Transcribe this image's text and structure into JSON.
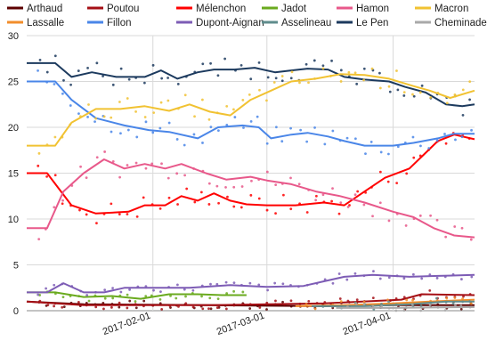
{
  "chart_data": {
    "type": "line",
    "title": "",
    "xlabel": "",
    "ylabel": "",
    "ylim": [
      0,
      30
    ],
    "yticks": [
      0,
      5,
      10,
      15,
      20,
      25,
      30
    ],
    "xrange": [
      "2017-01-01",
      "2017-04-21"
    ],
    "xticks": [
      {
        "date": "2017-02-01",
        "label": "2017-02-01"
      },
      {
        "date": "2017-03-01",
        "label": "2017-03-01"
      },
      {
        "date": "2017-04-01",
        "label": "2017-04-01"
      }
    ],
    "grid": true,
    "legend_position": "top",
    "series": [
      {
        "name": "Arthaud",
        "color": "#5c0000",
        "points": [
          [
            "2017-01-01",
            1
          ],
          [
            "2017-01-15",
            0.7
          ],
          [
            "2017-02-15",
            0.6
          ],
          [
            "2017-03-15",
            0.5
          ],
          [
            "2017-04-01",
            0.6
          ],
          [
            "2017-04-21",
            0.6
          ]
        ]
      },
      {
        "name": "Poutou",
        "color": "#a50f15",
        "points": [
          [
            "2017-01-01",
            1
          ],
          [
            "2017-01-15",
            0.6
          ],
          [
            "2017-02-15",
            0.6
          ],
          [
            "2017-03-15",
            0.8
          ],
          [
            "2017-04-03",
            1.2
          ],
          [
            "2017-04-08",
            1.8
          ],
          [
            "2017-04-21",
            1.7
          ]
        ]
      },
      {
        "name": "Mélenchon",
        "color": "#ff0000",
        "points": [
          [
            "2017-01-01",
            15
          ],
          [
            "2017-01-06",
            15
          ],
          [
            "2017-01-12",
            11.5
          ],
          [
            "2017-01-18",
            10.6
          ],
          [
            "2017-01-26",
            10.8
          ],
          [
            "2017-01-30",
            11.5
          ],
          [
            "2017-02-04",
            11.5
          ],
          [
            "2017-02-08",
            12.5
          ],
          [
            "2017-02-12",
            12
          ],
          [
            "2017-02-16",
            12.8
          ],
          [
            "2017-02-20",
            12
          ],
          [
            "2017-02-24",
            11.6
          ],
          [
            "2017-03-01",
            11.5
          ],
          [
            "2017-03-08",
            11.5
          ],
          [
            "2017-03-15",
            11.8
          ],
          [
            "2017-03-20",
            11.5
          ],
          [
            "2017-03-25",
            13
          ],
          [
            "2017-03-30",
            14.5
          ],
          [
            "2017-04-05",
            15.5
          ],
          [
            "2017-04-08",
            16.8
          ],
          [
            "2017-04-12",
            18.5
          ],
          [
            "2017-04-16",
            19.2
          ],
          [
            "2017-04-21",
            18.7
          ]
        ]
      },
      {
        "name": "Hamon",
        "color": "#e8588a",
        "points": [
          [
            "2017-01-01",
            9
          ],
          [
            "2017-01-06",
            9
          ],
          [
            "2017-01-10",
            13
          ],
          [
            "2017-01-15",
            15
          ],
          [
            "2017-01-20",
            16.5
          ],
          [
            "2017-01-25",
            15.5
          ],
          [
            "2017-01-30",
            16
          ],
          [
            "2017-02-04",
            15.5
          ],
          [
            "2017-02-08",
            16
          ],
          [
            "2017-02-14",
            15
          ],
          [
            "2017-02-19",
            14.3
          ],
          [
            "2017-02-25",
            14.6
          ],
          [
            "2017-03-01",
            14.2
          ],
          [
            "2017-03-07",
            13.8
          ],
          [
            "2017-03-13",
            13
          ],
          [
            "2017-03-19",
            12.5
          ],
          [
            "2017-03-25",
            11.8
          ],
          [
            "2017-04-01",
            10.8
          ],
          [
            "2017-04-06",
            10.2
          ],
          [
            "2017-04-11",
            9
          ],
          [
            "2017-04-16",
            8.2
          ],
          [
            "2017-04-21",
            8
          ]
        ]
      },
      {
        "name": "Jadot",
        "color": "#6aaa1e",
        "points": [
          [
            "2017-01-01",
            2
          ],
          [
            "2017-01-08",
            2
          ],
          [
            "2017-01-15",
            1.5
          ],
          [
            "2017-01-22",
            1.6
          ],
          [
            "2017-01-29",
            1.3
          ],
          [
            "2017-02-05",
            1.8
          ],
          [
            "2017-02-12",
            1.8
          ],
          [
            "2017-02-18",
            1.7
          ],
          [
            "2017-02-24",
            1.7
          ]
        ]
      },
      {
        "name": "Lassalle",
        "color": "#f28e2b",
        "points": [
          [
            "2017-03-08",
            0.5
          ],
          [
            "2017-03-20",
            0.6
          ],
          [
            "2017-04-01",
            0.8
          ],
          [
            "2017-04-10",
            1
          ],
          [
            "2017-04-21",
            1.2
          ]
        ]
      },
      {
        "name": "Fillon",
        "color": "#4a86e8",
        "points": [
          [
            "2017-01-01",
            25
          ],
          [
            "2017-01-08",
            25
          ],
          [
            "2017-01-12",
            23
          ],
          [
            "2017-01-18",
            21
          ],
          [
            "2017-01-25",
            20.2
          ],
          [
            "2017-01-31",
            19.7
          ],
          [
            "2017-02-05",
            19.5
          ],
          [
            "2017-02-12",
            18.8
          ],
          [
            "2017-02-17",
            20
          ],
          [
            "2017-02-23",
            20.2
          ],
          [
            "2017-02-27",
            20
          ],
          [
            "2017-03-02",
            18.8
          ],
          [
            "2017-03-07",
            19.2
          ],
          [
            "2017-03-11",
            19.4
          ],
          [
            "2017-03-16",
            19
          ],
          [
            "2017-03-20",
            18.5
          ],
          [
            "2017-03-25",
            18
          ],
          [
            "2017-04-01",
            18
          ],
          [
            "2017-04-06",
            18.3
          ],
          [
            "2017-04-12",
            18.8
          ],
          [
            "2017-04-16",
            19.3
          ],
          [
            "2017-04-21",
            19.3
          ]
        ]
      },
      {
        "name": "Dupont-Aignan",
        "color": "#7d5cb5",
        "points": [
          [
            "2017-01-01",
            2
          ],
          [
            "2017-01-06",
            2
          ],
          [
            "2017-01-10",
            3
          ],
          [
            "2017-01-15",
            2
          ],
          [
            "2017-01-20",
            2
          ],
          [
            "2017-01-25",
            2.5
          ],
          [
            "2017-02-01",
            2.5
          ],
          [
            "2017-02-10",
            2.5
          ],
          [
            "2017-02-20",
            2.8
          ],
          [
            "2017-03-01",
            2.6
          ],
          [
            "2017-03-10",
            2.7
          ],
          [
            "2017-03-15",
            3.2
          ],
          [
            "2017-03-20",
            3.7
          ],
          [
            "2017-03-27",
            3.9
          ],
          [
            "2017-04-05",
            3.7
          ],
          [
            "2017-04-12",
            3.8
          ],
          [
            "2017-04-21",
            3.9
          ]
        ]
      },
      {
        "name": "Asselineau",
        "color": "#5f8c8c",
        "points": [
          [
            "2017-03-12",
            0.5
          ],
          [
            "2017-03-25",
            0.5
          ],
          [
            "2017-04-05",
            0.7
          ],
          [
            "2017-04-14",
            1
          ],
          [
            "2017-04-21",
            1
          ]
        ]
      },
      {
        "name": "Le Pen",
        "color": "#1c3a5e",
        "points": [
          [
            "2017-01-01",
            27
          ],
          [
            "2017-01-08",
            27
          ],
          [
            "2017-01-12",
            25.5
          ],
          [
            "2017-01-17",
            26
          ],
          [
            "2017-01-23",
            25.5
          ],
          [
            "2017-01-30",
            25.5
          ],
          [
            "2017-02-03",
            26.2
          ],
          [
            "2017-02-07",
            25.3
          ],
          [
            "2017-02-12",
            26
          ],
          [
            "2017-02-16",
            26.3
          ],
          [
            "2017-02-21",
            26.3
          ],
          [
            "2017-02-26",
            26.5
          ],
          [
            "2017-03-03",
            26
          ],
          [
            "2017-03-07",
            26.2
          ],
          [
            "2017-03-11",
            26.4
          ],
          [
            "2017-03-16",
            26.3
          ],
          [
            "2017-03-20",
            25.5
          ],
          [
            "2017-03-25",
            25.2
          ],
          [
            "2017-03-31",
            25
          ],
          [
            "2017-04-04",
            24.4
          ],
          [
            "2017-04-09",
            23.8
          ],
          [
            "2017-04-14",
            22.5
          ],
          [
            "2017-04-18",
            22.3
          ],
          [
            "2017-04-21",
            22.5
          ]
        ]
      },
      {
        "name": "Macron",
        "color": "#f1c232",
        "points": [
          [
            "2017-01-01",
            18
          ],
          [
            "2017-01-08",
            18
          ],
          [
            "2017-01-12",
            20.5
          ],
          [
            "2017-01-18",
            22
          ],
          [
            "2017-01-24",
            22
          ],
          [
            "2017-01-30",
            22.3
          ],
          [
            "2017-02-05",
            21.8
          ],
          [
            "2017-02-10",
            22.5
          ],
          [
            "2017-02-15",
            21.7
          ],
          [
            "2017-02-20",
            21.3
          ],
          [
            "2017-02-25",
            23
          ],
          [
            "2017-03-02",
            24
          ],
          [
            "2017-03-07",
            25
          ],
          [
            "2017-03-13",
            25.3
          ],
          [
            "2017-03-19",
            25.8
          ],
          [
            "2017-03-25",
            25.7
          ],
          [
            "2017-03-31",
            25.3
          ],
          [
            "2017-04-06",
            24.5
          ],
          [
            "2017-04-10",
            24
          ],
          [
            "2017-04-15",
            23.2
          ],
          [
            "2017-04-21",
            24
          ]
        ]
      },
      {
        "name": "Cheminade",
        "color": "#a9a9a9",
        "points": [
          [
            "2017-03-18",
            0.3
          ],
          [
            "2017-04-01",
            0.3
          ],
          [
            "2017-04-21",
            0.4
          ]
        ]
      }
    ]
  }
}
